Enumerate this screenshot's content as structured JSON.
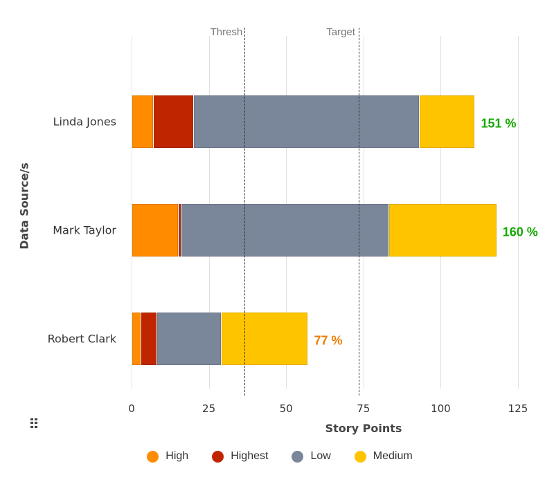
{
  "chart_data": {
    "type": "bar",
    "orientation": "horizontal",
    "stacked": true,
    "title": "",
    "xlabel": "Story Points",
    "ylabel": "Data Source/s",
    "xlim": [
      0,
      125
    ],
    "xticks": [
      0,
      25,
      50,
      75,
      100,
      125
    ],
    "grid": true,
    "legend_position": "bottom",
    "categories": [
      "Linda Jones",
      "Mark Taylor",
      "Robert Clark"
    ],
    "series": [
      {
        "name": "High",
        "color": "#FF8C00",
        "values": [
          7,
          15,
          3
        ]
      },
      {
        "name": "Highest",
        "color": "#BF2600",
        "values": [
          13,
          1,
          5
        ]
      },
      {
        "name": "Low",
        "color": "#7A869A",
        "values": [
          73,
          67,
          21
        ]
      },
      {
        "name": "Medium",
        "color": "#FFC400",
        "values": [
          18,
          35,
          28
        ]
      }
    ],
    "totals": [
      111,
      118,
      57
    ],
    "annotations": [
      {
        "category": "Linda Jones",
        "text": "151 %",
        "color": "#14A800"
      },
      {
        "category": "Mark Taylor",
        "text": "160 %",
        "color": "#14A800"
      },
      {
        "category": "Robert Clark",
        "text": "77 %",
        "color": "#EE7D00"
      }
    ],
    "reference_lines": [
      {
        "label": "Thresh",
        "value": 36.5
      },
      {
        "label": "Target",
        "value": 73.5
      }
    ]
  },
  "labels": {
    "xaxis_title": "Story Points",
    "yaxis_title": "Data Source/s",
    "ticks": [
      "0",
      "25",
      "50",
      "75",
      "100",
      "125"
    ],
    "rows": [
      "Linda Jones",
      "Mark Taylor",
      "Robert Clark"
    ],
    "pcts": [
      "151 %",
      "160 %",
      "77 %"
    ],
    "thresh": "Thresh",
    "target": "Target",
    "legend": [
      "High",
      "Highest",
      "Low",
      "Medium"
    ]
  }
}
